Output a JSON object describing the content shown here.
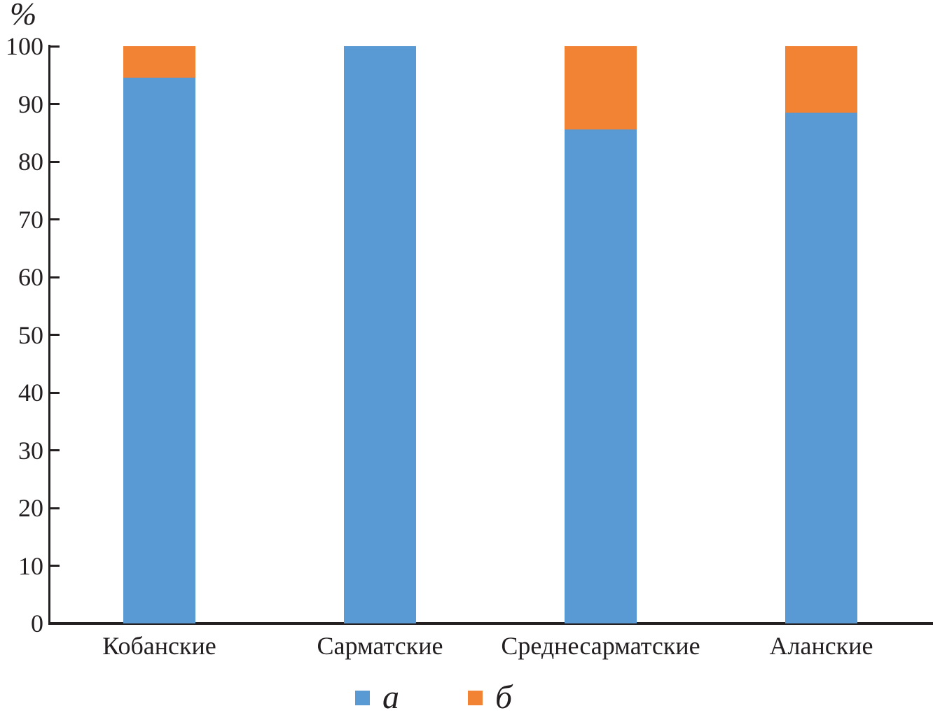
{
  "figure": {
    "type_note": "stacked bar chart"
  },
  "chart_data": {
    "type": "bar",
    "stacked": true,
    "categories": [
      "Кобанские",
      "Сарматские",
      "Среднесарматские",
      "Аланские"
    ],
    "series": [
      {
        "name": "а",
        "color": "#5A9AD4",
        "values": [
          94.5,
          100,
          85.6,
          88.5
        ]
      },
      {
        "name": "б",
        "color": "#F28334",
        "values": [
          5.5,
          0,
          14.4,
          11.5
        ]
      }
    ],
    "title": "",
    "xlabel": "",
    "ylabel": "%",
    "ylim": [
      0,
      100
    ],
    "y_ticks": [
      0,
      10,
      20,
      30,
      40,
      50,
      60,
      70,
      80,
      90,
      100
    ],
    "grid": false,
    "legend_position": "bottom"
  },
  "legend": {
    "items": [
      {
        "label": "а",
        "color": "#5A9AD4"
      },
      {
        "label": "б",
        "color": "#F28334"
      }
    ]
  }
}
